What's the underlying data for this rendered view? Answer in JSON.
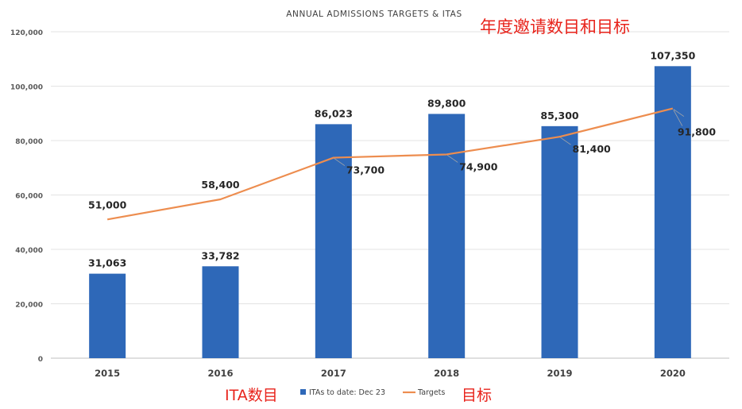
{
  "chart_data": {
    "type": "bar",
    "title": "ANNUAL ADMISSIONS TARGETS & ITAS",
    "categories": [
      "2015",
      "2016",
      "2017",
      "2018",
      "2019",
      "2020"
    ],
    "series": [
      {
        "name": "ITAs to date: Dec 23",
        "type": "bar",
        "color": "#2e68b8",
        "values": [
          31063,
          33782,
          86023,
          89800,
          85300,
          107350
        ],
        "labels": [
          "31,063",
          "33,782",
          "86,023",
          "89,800",
          "85,300",
          "107,350"
        ]
      },
      {
        "name": "Targets",
        "type": "line",
        "color": "#ed8d4f",
        "values": [
          51000,
          58400,
          73700,
          74900,
          81400,
          91800
        ],
        "labels": [
          "51,000",
          "58,400",
          "73,700",
          "74,900",
          "81,400",
          "91,800"
        ]
      }
    ],
    "ylim": [
      0,
      120000
    ],
    "yticks": [
      0,
      20000,
      40000,
      60000,
      80000,
      100000,
      120000
    ],
    "ytick_labels": [
      "0",
      "20,000",
      "40,000",
      "60,000",
      "80,000",
      "100,000",
      "120,000"
    ],
    "xlabel": "",
    "ylabel": "",
    "grid": true,
    "legend_position": "bottom"
  },
  "annotations": {
    "top_right": "年度邀请数目和目标",
    "bottom_left": "ITA数目",
    "bottom_right": "目标"
  }
}
